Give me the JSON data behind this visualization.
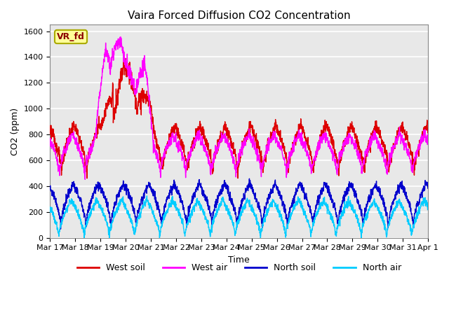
{
  "title": "Vaira Forced Diffusion CO2 Concentration",
  "xlabel": "Time",
  "ylabel": "CO2 (ppm)",
  "ylim": [
    0,
    1650
  ],
  "yticks": [
    0,
    200,
    400,
    600,
    800,
    1000,
    1200,
    1400,
    1600
  ],
  "label_box_text": "VR_fd",
  "label_box_color": "#ffff99",
  "label_box_border": "#aaaa00",
  "legend_labels": [
    "West soil",
    "West air",
    "North soil",
    "North air"
  ],
  "line_colors": [
    "#dd0000",
    "#ff00ff",
    "#0000cc",
    "#00ccff"
  ],
  "background_color": "#e8e8e8",
  "grid_color": "#ffffff",
  "num_points": 2000
}
